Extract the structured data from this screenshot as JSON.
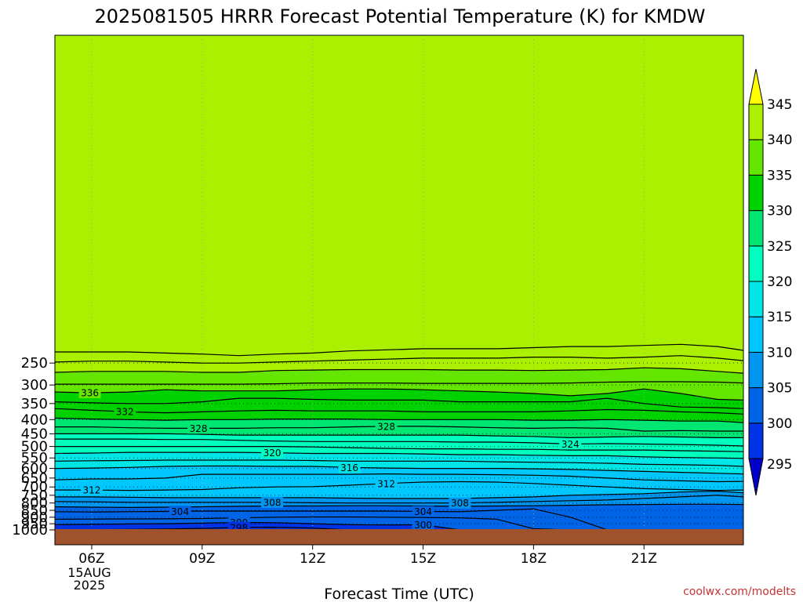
{
  "title": "2025081505 HRRR Forecast Potential Temperature (K) for KMDW",
  "watermark": "coolwx.com/modelts",
  "colors": {
    "ground": "#a0522d",
    "contour_line": "#000000",
    "watermark": "#c83232",
    "grid": "#a0a0a0",
    "bands": [
      "#0000c8",
      "#0033e6",
      "#0064e6",
      "#0096f0",
      "#00c8ff",
      "#00e6e6",
      "#00ffbe",
      "#00e673",
      "#00d200",
      "#64e600",
      "#aaf000",
      "#e6f500",
      "#ffff00"
    ]
  },
  "chart_data": {
    "type": "heatmap",
    "title": "2025081505 HRRR Forecast Potential Temperature (K) for KMDW",
    "xlabel": "Forecast Time (UTC)",
    "ylabel": "",
    "xlim": [
      5,
      23.7
    ],
    "ylim": [
      1000,
      200
    ],
    "y_scale": "log-pressure",
    "grid": true,
    "x_ticks": [
      {
        "hour": 6,
        "label": "06Z",
        "sub": [
          "15AUG",
          "2025"
        ]
      },
      {
        "hour": 9,
        "label": "09Z"
      },
      {
        "hour": 12,
        "label": "12Z"
      },
      {
        "hour": 15,
        "label": "15Z"
      },
      {
        "hour": 18,
        "label": "18Z"
      },
      {
        "hour": 21,
        "label": "21Z"
      }
    ],
    "y_ticks": [
      250,
      300,
      350,
      400,
      450,
      500,
      550,
      600,
      650,
      700,
      750,
      800,
      850,
      900,
      950,
      1000
    ],
    "colorbar": {
      "levels": [
        295,
        300,
        305,
        310,
        315,
        320,
        325,
        330,
        335,
        340,
        345
      ],
      "extend": "both",
      "placement": "right"
    },
    "hours": [
      5,
      6,
      7,
      8,
      9,
      10,
      11,
      12,
      13,
      14,
      15,
      16,
      17,
      18,
      19,
      20,
      21,
      22,
      23,
      23.7
    ],
    "isentropes": [
      {
        "theta": 298,
        "p": [
          1000,
          998,
          996,
          992,
          988,
          980,
          978,
          985,
          1000,
          1000,
          1000,
          1000,
          1000,
          1000,
          1000,
          1000,
          1000,
          1000,
          1000,
          1000
        ]
      },
      {
        "theta": 300,
        "p": [
          958,
          955,
          952,
          950,
          945,
          940,
          942,
          950,
          958,
          960,
          958,
          1000,
          1000,
          1000,
          1000,
          1000,
          1000,
          1000,
          1000,
          1000
        ]
      },
      {
        "theta": 302,
        "p": [
          915,
          914,
          913,
          912,
          910,
          905,
          900,
          898,
          898,
          900,
          902,
          905,
          915,
          990,
          1000,
          1000,
          1000,
          1000,
          1000,
          1000
        ]
      },
      {
        "theta": 304,
        "p": [
          860,
          862,
          860,
          858,
          855,
          855,
          855,
          855,
          855,
          855,
          858,
          860,
          850,
          840,
          900,
          1000,
          1000,
          1000,
          1000,
          1000
        ]
      },
      {
        "theta": 306,
        "p": [
          825,
          828,
          830,
          828,
          825,
          822,
          820,
          820,
          818,
          818,
          820,
          822,
          820,
          818,
          815,
          812,
          810,
          808,
          808,
          810
        ]
      },
      {
        "theta": 308,
        "p": [
          790,
          792,
          795,
          795,
          795,
          795,
          795,
          798,
          800,
          800,
          800,
          800,
          795,
          790,
          785,
          780,
          770,
          760,
          750,
          760
        ]
      },
      {
        "theta": 310,
        "p": [
          760,
          760,
          762,
          765,
          765,
          765,
          765,
          765,
          768,
          770,
          770,
          770,
          765,
          760,
          750,
          745,
          740,
          730,
          725,
          735
        ]
      },
      {
        "theta": 312,
        "p": [
          718,
          718,
          720,
          718,
          715,
          705,
          700,
          698,
          690,
          680,
          672,
          670,
          672,
          680,
          690,
          700,
          710,
          715,
          720,
          718
        ]
      },
      {
        "theta": 314,
        "p": [
          660,
          655,
          655,
          650,
          630,
          630,
          630,
          630,
          630,
          628,
          630,
          630,
          632,
          635,
          640,
          650,
          660,
          665,
          670,
          668
        ]
      },
      {
        "theta": 316,
        "p": [
          600,
          598,
          595,
          590,
          588,
          588,
          590,
          590,
          595,
          598,
          600,
          600,
          600,
          602,
          605,
          610,
          615,
          620,
          625,
          628
        ]
      },
      {
        "theta": 318,
        "p": [
          565,
          563,
          562,
          560,
          560,
          560,
          560,
          562,
          565,
          565,
          565,
          565,
          568,
          570,
          572,
          575,
          580,
          582,
          585,
          590
        ]
      },
      {
        "theta": 320,
        "p": [
          530,
          528,
          525,
          525,
          525,
          525,
          527,
          530,
          530,
          530,
          532,
          535,
          535,
          538,
          540,
          540,
          545,
          548,
          550,
          552
        ]
      },
      {
        "theta": 322,
        "p": [
          500,
          500,
          500,
          500,
          500,
          500,
          500,
          502,
          505,
          508,
          510,
          510,
          512,
          512,
          515,
          515,
          515,
          518,
          520,
          522
        ]
      },
      {
        "theta": 324,
        "p": [
          470,
          470,
          470,
          472,
          472,
          475,
          478,
          480,
          480,
          480,
          480,
          482,
          482,
          485,
          490,
          488,
          490,
          492,
          495,
          498
        ]
      },
      {
        "theta": 326,
        "p": [
          450,
          450,
          450,
          450,
          452,
          455,
          455,
          455,
          455,
          455,
          455,
          455,
          458,
          460,
          465,
          462,
          460,
          462,
          465,
          465
        ]
      },
      {
        "theta": 328,
        "p": [
          425,
          425,
          428,
          430,
          430,
          430,
          428,
          428,
          425,
          423,
          423,
          425,
          428,
          430,
          428,
          430,
          440,
          438,
          440,
          440
        ]
      },
      {
        "theta": 330,
        "p": [
          395,
          398,
          400,
          402,
          400,
          400,
          398,
          398,
          398,
          400,
          400,
          400,
          400,
          402,
          402,
          400,
          402,
          405,
          405,
          410
        ]
      },
      {
        "theta": 332,
        "p": [
          365,
          370,
          375,
          378,
          375,
          372,
          370,
          372,
          372,
          372,
          375,
          375,
          375,
          375,
          372,
          368,
          370,
          375,
          378,
          382
        ]
      },
      {
        "theta": 334,
        "p": [
          345,
          348,
          350,
          350,
          345,
          335,
          335,
          338,
          340,
          340,
          340,
          345,
          345,
          345,
          345,
          335,
          350,
          360,
          362,
          365
        ]
      },
      {
        "theta": 336,
        "p": [
          318,
          320,
          318,
          312,
          315,
          315,
          315,
          312,
          310,
          310,
          312,
          315,
          318,
          322,
          328,
          322,
          310,
          322,
          338,
          340
        ]
      },
      {
        "theta": 338,
        "p": [
          298,
          298,
          298,
          298,
          298,
          298,
          297,
          295,
          295,
          295,
          296,
          296,
          296,
          296,
          295,
          293,
          292,
          292,
          293,
          295
        ]
      },
      {
        "theta": 340,
        "p": [
          270,
          268,
          268,
          268,
          270,
          270,
          266,
          265,
          264,
          264,
          264,
          265,
          265,
          266,
          265,
          264,
          260,
          262,
          268,
          272
        ]
      },
      {
        "theta": 342,
        "p": [
          248,
          246,
          246,
          248,
          250,
          250,
          248,
          246,
          244,
          242,
          240,
          240,
          240,
          238,
          238,
          240,
          238,
          235,
          240,
          245
        ]
      },
      {
        "theta": 344,
        "p": [
          228,
          228,
          228,
          230,
          232,
          235,
          232,
          230,
          226,
          224,
          222,
          222,
          222,
          220,
          218,
          218,
          216,
          214,
          218,
          225
        ]
      }
    ],
    "contour_labels": [
      {
        "theta": 336,
        "hour": 5.95
      },
      {
        "theta": 332,
        "hour": 6.9
      },
      {
        "theta": 328,
        "hour": 8.9
      },
      {
        "theta": 328,
        "hour": 14.0
      },
      {
        "theta": 324,
        "hour": 19.0
      },
      {
        "theta": 320,
        "hour": 10.9
      },
      {
        "theta": 316,
        "hour": 13.0
      },
      {
        "theta": 312,
        "hour": 14.0
      },
      {
        "theta": 312,
        "hour": 6.0
      },
      {
        "theta": 308,
        "hour": 10.9
      },
      {
        "theta": 308,
        "hour": 16.0
      },
      {
        "theta": 304,
        "hour": 8.4
      },
      {
        "theta": 304,
        "hour": 15.0
      },
      {
        "theta": 300,
        "hour": 10.0
      },
      {
        "theta": 300,
        "hour": 15.0
      },
      {
        "theta": 298,
        "hour": 10.0
      }
    ]
  }
}
